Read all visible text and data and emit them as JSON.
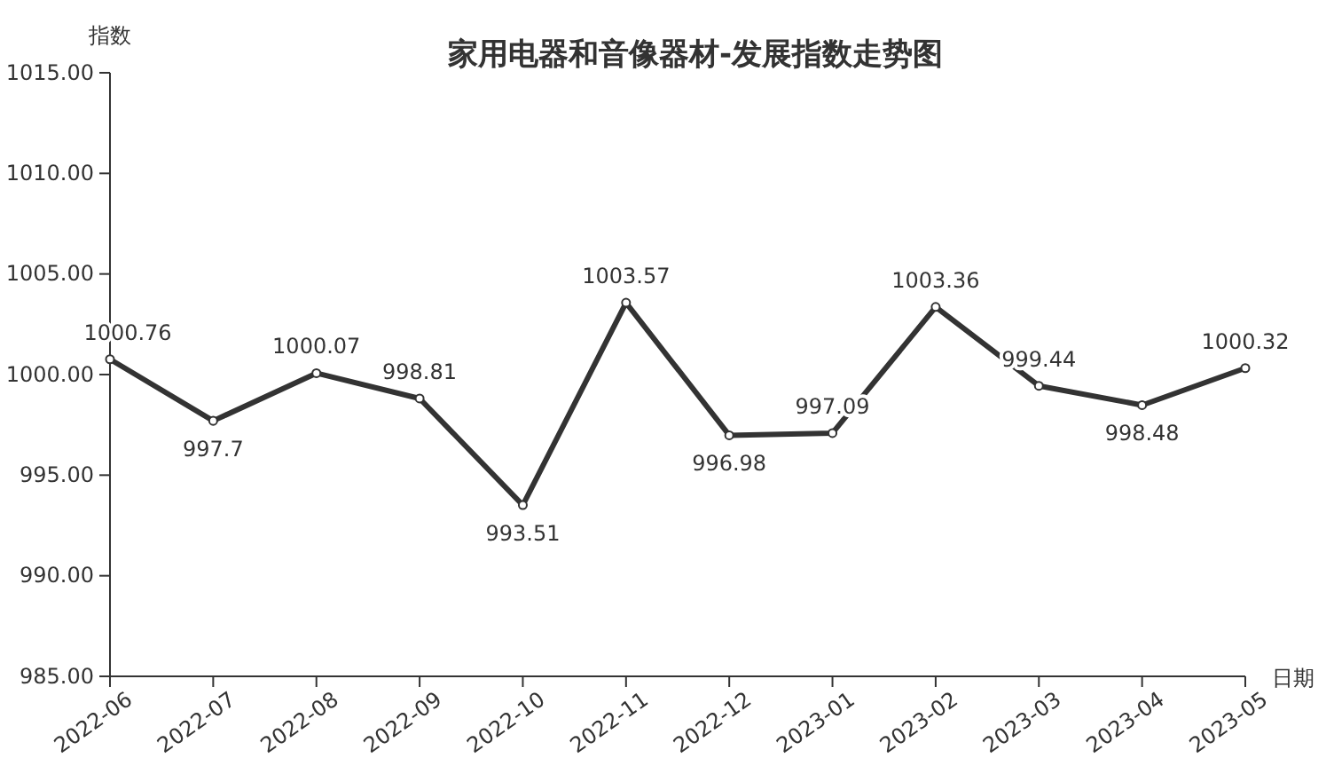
{
  "chart_data": {
    "type": "line",
    "title": "家用电器和音像器材-发展指数走势图",
    "xlabel": "日期",
    "ylabel": "指数",
    "categories": [
      "2022-06",
      "2022-07",
      "2022-08",
      "2022-09",
      "2022-10",
      "2022-11",
      "2022-12",
      "2023-01",
      "2023-02",
      "2023-03",
      "2023-04",
      "2023-05"
    ],
    "series": [
      {
        "color": "#333333",
        "values": [
          1000.76,
          997.7,
          1000.07,
          998.81,
          993.51,
          1003.57,
          996.98,
          997.09,
          1003.36,
          999.44,
          998.48,
          1000.32
        ]
      }
    ],
    "ylim": [
      985,
      1015
    ],
    "yticks": [
      {
        "value": 985,
        "label": "985.00"
      },
      {
        "value": 990,
        "label": "990.00"
      },
      {
        "value": 995,
        "label": "995.00"
      },
      {
        "value": 1000,
        "label": "1000.00"
      },
      {
        "value": 1005,
        "label": "1005.00"
      },
      {
        "value": 1010,
        "label": "1010.00"
      },
      {
        "value": 1015,
        "label": "1015.00"
      }
    ],
    "data_labels": true,
    "marker": "circle",
    "line_style": "solid",
    "grid": false
  }
}
